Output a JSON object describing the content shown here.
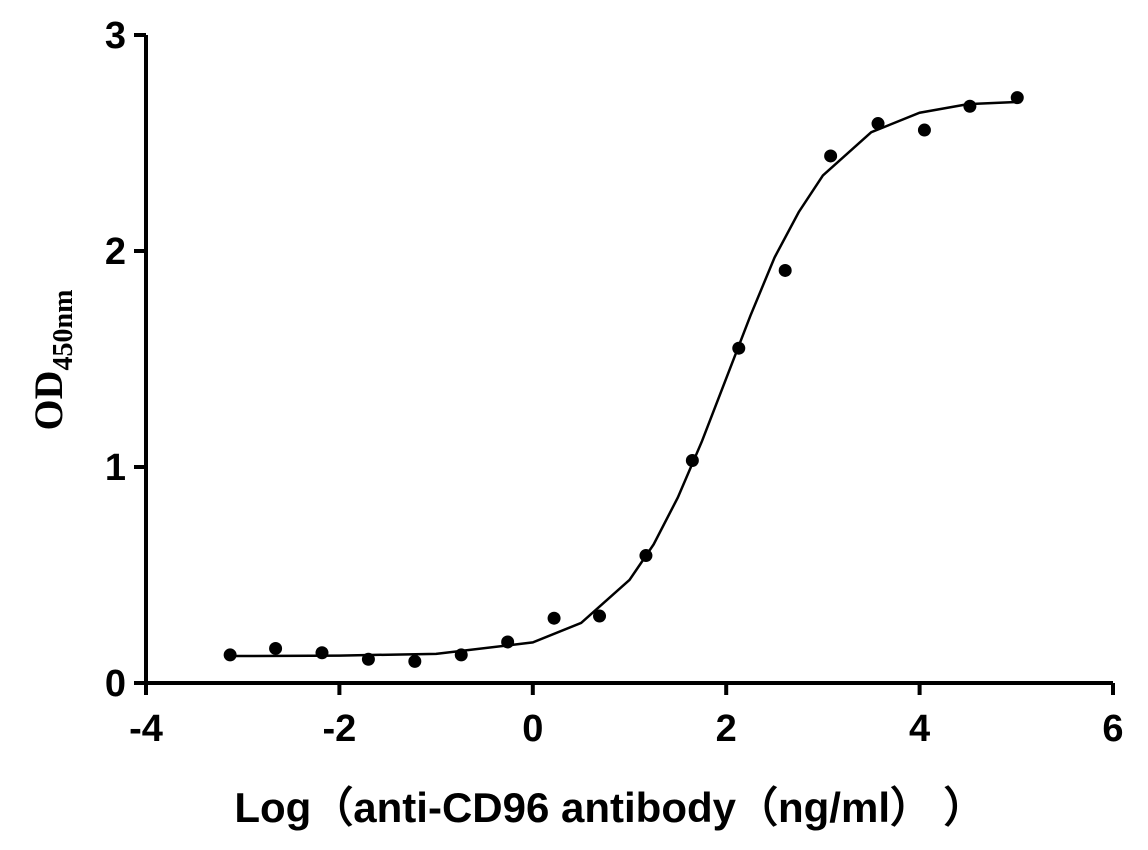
{
  "chart_data": {
    "type": "scatter",
    "x_label": "Log（anti-CD96 antibody（ng/ml）  ）",
    "y_label": "OD",
    "y_label_sub": "450nm",
    "xlim": [
      -4,
      6
    ],
    "xticks": [
      -4,
      -2,
      0,
      2,
      4,
      6
    ],
    "ylim": [
      0,
      3
    ],
    "yticks": [
      0,
      1,
      2,
      3
    ],
    "series": [
      {
        "kind": "points",
        "color": "#000000",
        "x": [
          -3.13,
          -2.66,
          -2.18,
          -1.7,
          -1.22,
          -0.74,
          -0.26,
          0.22,
          0.69,
          1.17,
          1.65,
          2.13,
          2.61,
          3.08,
          3.57,
          4.05,
          4.52,
          5.01
        ],
        "values": [
          0.13,
          0.16,
          0.14,
          0.11,
          0.1,
          0.13,
          0.19,
          0.3,
          0.31,
          0.59,
          1.03,
          1.55,
          1.91,
          2.44,
          2.59,
          2.56,
          2.67,
          2.71
        ]
      },
      {
        "kind": "curve",
        "color": "#000000",
        "x": [
          -3.13,
          -3,
          -2,
          -1,
          0,
          0.5,
          1,
          1.25,
          1.5,
          1.75,
          2,
          2.25,
          2.5,
          2.75,
          3,
          3.5,
          4,
          4.5,
          5,
          5.01
        ],
        "values": [
          0.125,
          0.125,
          0.127,
          0.135,
          0.188,
          0.278,
          0.477,
          0.642,
          0.859,
          1.12,
          1.41,
          1.7,
          1.97,
          2.18,
          2.35,
          2.55,
          2.64,
          2.68,
          2.69,
          2.69
        ]
      }
    ]
  }
}
